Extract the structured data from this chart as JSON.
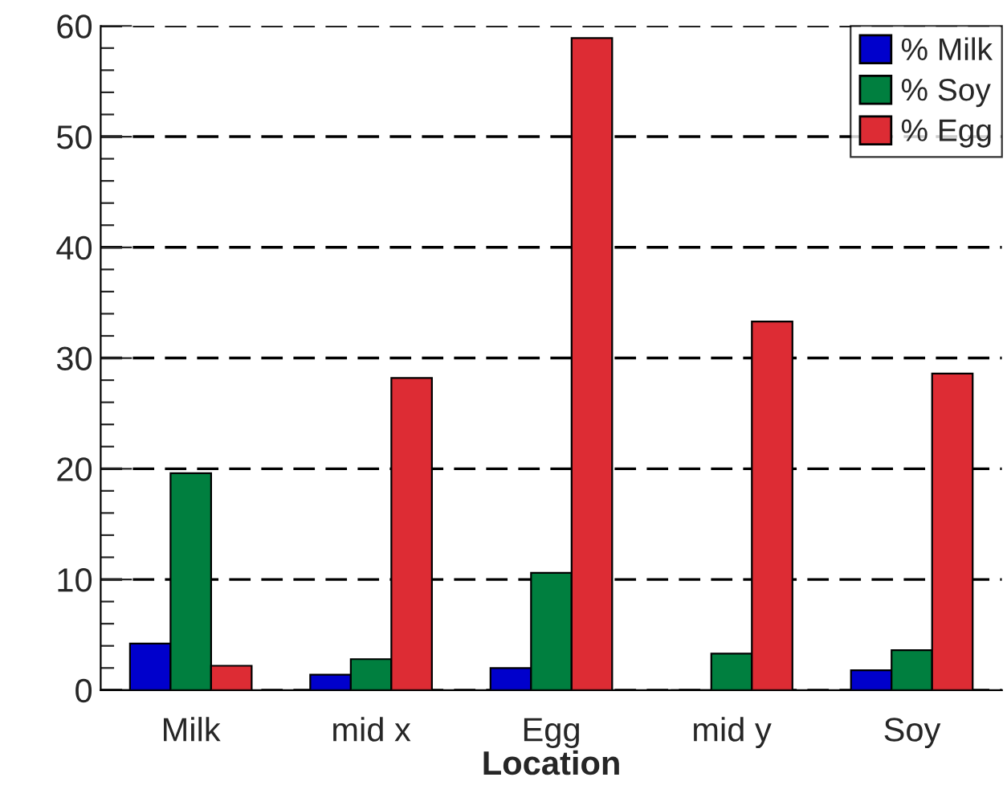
{
  "chart_data": {
    "type": "bar",
    "xlabel": "Location",
    "categories": [
      "Milk",
      "mid x",
      "Egg",
      "mid y",
      "Soy"
    ],
    "series": [
      {
        "name": "% Milk",
        "color": "#0000cc",
        "values": [
          4.2,
          1.4,
          2.0,
          0,
          1.8
        ]
      },
      {
        "name": "% Soy",
        "color": "#007f3f",
        "values": [
          19.6,
          2.8,
          10.6,
          3.3,
          3.6
        ]
      },
      {
        "name": "% Egg",
        "color": "#dd2c34",
        "values": [
          2.2,
          28.2,
          58.9,
          33.3,
          28.6
        ]
      }
    ],
    "ylim": [
      0,
      60
    ],
    "yticks": [
      0,
      10,
      20,
      30,
      40,
      50,
      60
    ],
    "grid": "y",
    "legend": "top right"
  }
}
